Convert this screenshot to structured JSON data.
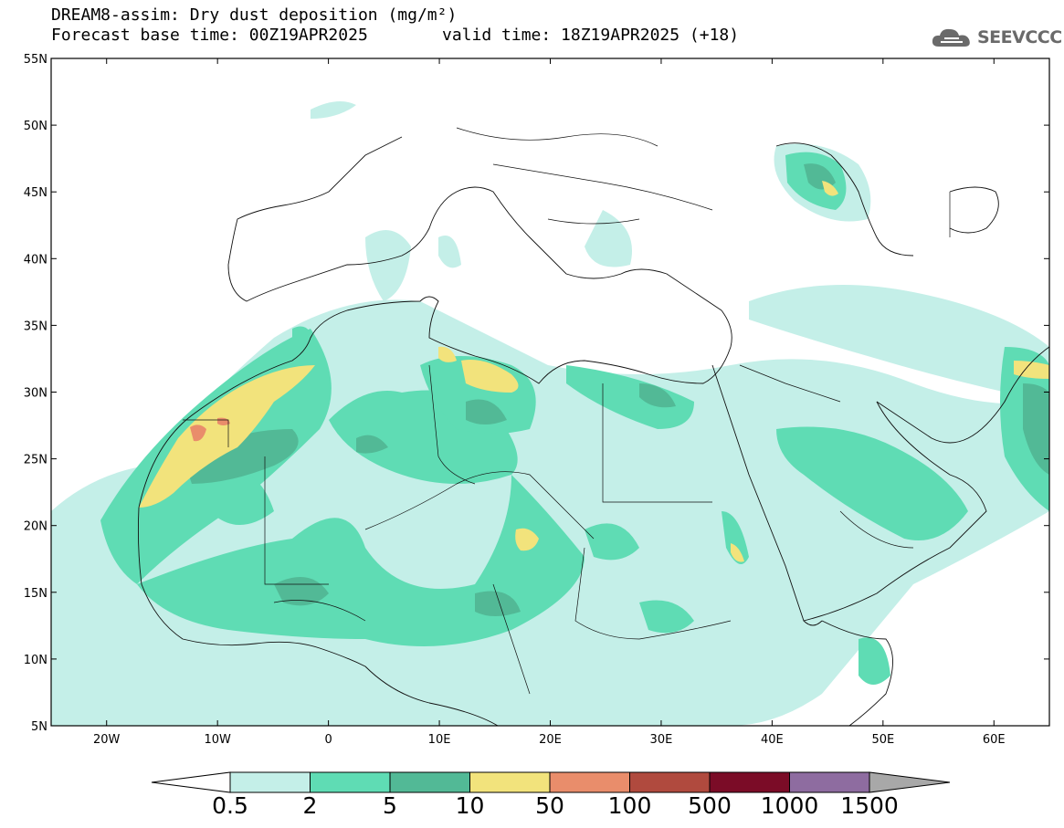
{
  "header": {
    "title": "DREAM8-assim: Dry dust deposition (mg/m²)",
    "base_time": "Forecast base time: 00Z19APR2025",
    "valid_time": "valid time: 18Z19APR2025 (+18)"
  },
  "logo": {
    "text": "SEEVCCC",
    "icon": "cloud-icon"
  },
  "map": {
    "lon_range": [
      -25,
      65
    ],
    "lat_range": [
      5,
      55
    ],
    "lat_ticks": [
      "55N",
      "50N",
      "45N",
      "40N",
      "35N",
      "30N",
      "25N",
      "20N",
      "15N",
      "10N",
      "5N"
    ],
    "lon_ticks": [
      "20W",
      "10W",
      "0",
      "10E",
      "20E",
      "30E",
      "40E",
      "50E",
      "60E"
    ]
  },
  "colorbar": {
    "labels": [
      "0.5",
      "2",
      "5",
      "10",
      "50",
      "100",
      "500",
      "1000",
      "1500"
    ],
    "colors": [
      "#c4efe8",
      "#5fdcb4",
      "#52b996",
      "#f2e37c",
      "#e98d6b",
      "#b04a3e",
      "#7b0c27",
      "#8e6ca0"
    ],
    "under_color": "#ffffff",
    "over_color": "#a8a8a8"
  }
}
